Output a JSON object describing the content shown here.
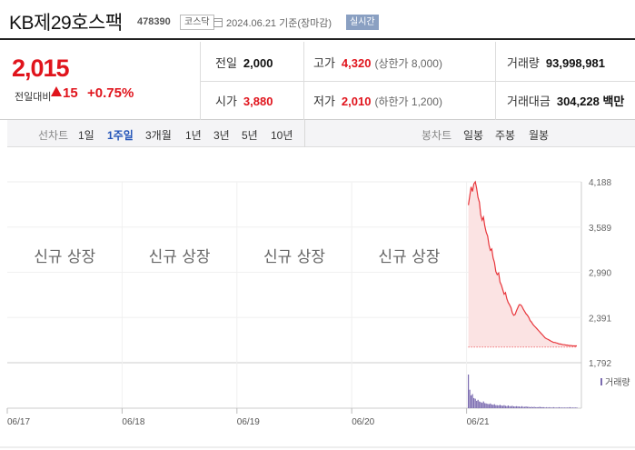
{
  "stock": {
    "name": "KB제29호스팩",
    "code": "478390",
    "market": "코스닥",
    "as_of": "2024.06.21 기준(장마감)",
    "realtime": "실시간"
  },
  "quote": {
    "price": "2,015",
    "change_label": "전일대비",
    "change_value": "15",
    "change_pct": "+0.75%",
    "prev_close": {
      "label": "전일",
      "value": "2,000"
    },
    "open": {
      "label": "시가",
      "value": "3,880"
    },
    "high": {
      "label": "고가",
      "value": "4,320",
      "sub": "(상한가 8,000)"
    },
    "low": {
      "label": "저가",
      "value": "2,010",
      "sub": "(하한가 1,200)"
    },
    "volume": {
      "label": "거래량",
      "value": "93,998,981"
    },
    "amount": {
      "label": "거래대금",
      "value": "304,228 백만"
    }
  },
  "period_bar": {
    "line_label": "선차트",
    "periods": [
      "1일",
      "1주일",
      "3개월",
      "1년",
      "3년",
      "5년",
      "10년"
    ],
    "selected_period": "1주일",
    "candle_label": "봉차트",
    "candles": [
      "일봉",
      "주봉",
      "월봉"
    ]
  },
  "chart_data": {
    "type": "line",
    "y_ticks": [
      "4,188",
      "3,589",
      "2,990",
      "2,391",
      "1,792"
    ],
    "ylim": [
      1792,
      4188
    ],
    "x_labels": [
      "06/17",
      "06/18",
      "06/19",
      "06/20",
      "06/21"
    ],
    "new_listing_text": "신규 상장",
    "volume_label": "거래량",
    "reference_price": 2000,
    "line_color": "#e8363c",
    "fill_color": "#fbe3e3",
    "volume_color": "#7b6bb0",
    "series": [
      {
        "values": [
          3880,
          4000,
          4120,
          4060,
          4160,
          4188,
          4100,
          3980,
          3920,
          3750,
          3680,
          3720,
          3600,
          3520,
          3470,
          3350,
          3280,
          3300,
          3180,
          3120,
          3000,
          2960,
          2980,
          2860,
          2820,
          2760,
          2700,
          2720,
          2640,
          2590,
          2560,
          2520,
          2450,
          2420,
          2430,
          2480,
          2520,
          2560,
          2560,
          2540,
          2500,
          2470,
          2440,
          2420,
          2390,
          2350,
          2330,
          2300,
          2280,
          2260,
          2240,
          2220,
          2200,
          2180,
          2160,
          2140,
          2120,
          2110,
          2100,
          2090,
          2080,
          2070,
          2060,
          2060,
          2055,
          2050,
          2040,
          2040,
          2035,
          2030,
          2030,
          2025,
          2025,
          2020,
          2020,
          2018,
          2015,
          2015,
          2015,
          2015
        ],
        "volumes": [
          100,
          55,
          38,
          42,
          30,
          28,
          22,
          25,
          20,
          18,
          16,
          20,
          15,
          14,
          13,
          12,
          14,
          11,
          10,
          12,
          9,
          9,
          8,
          10,
          8,
          7,
          9,
          7,
          6,
          8,
          6,
          6,
          7,
          5,
          5,
          6,
          5,
          5,
          4,
          6,
          4,
          4,
          5,
          4,
          4,
          3,
          4,
          3,
          4,
          3,
          3,
          3,
          4,
          3,
          3,
          3,
          2,
          3,
          2,
          3,
          2,
          2,
          3,
          2,
          2,
          2,
          3,
          2,
          2,
          2,
          2,
          2,
          2,
          2,
          3,
          2,
          2,
          2,
          2,
          2
        ]
      }
    ]
  }
}
